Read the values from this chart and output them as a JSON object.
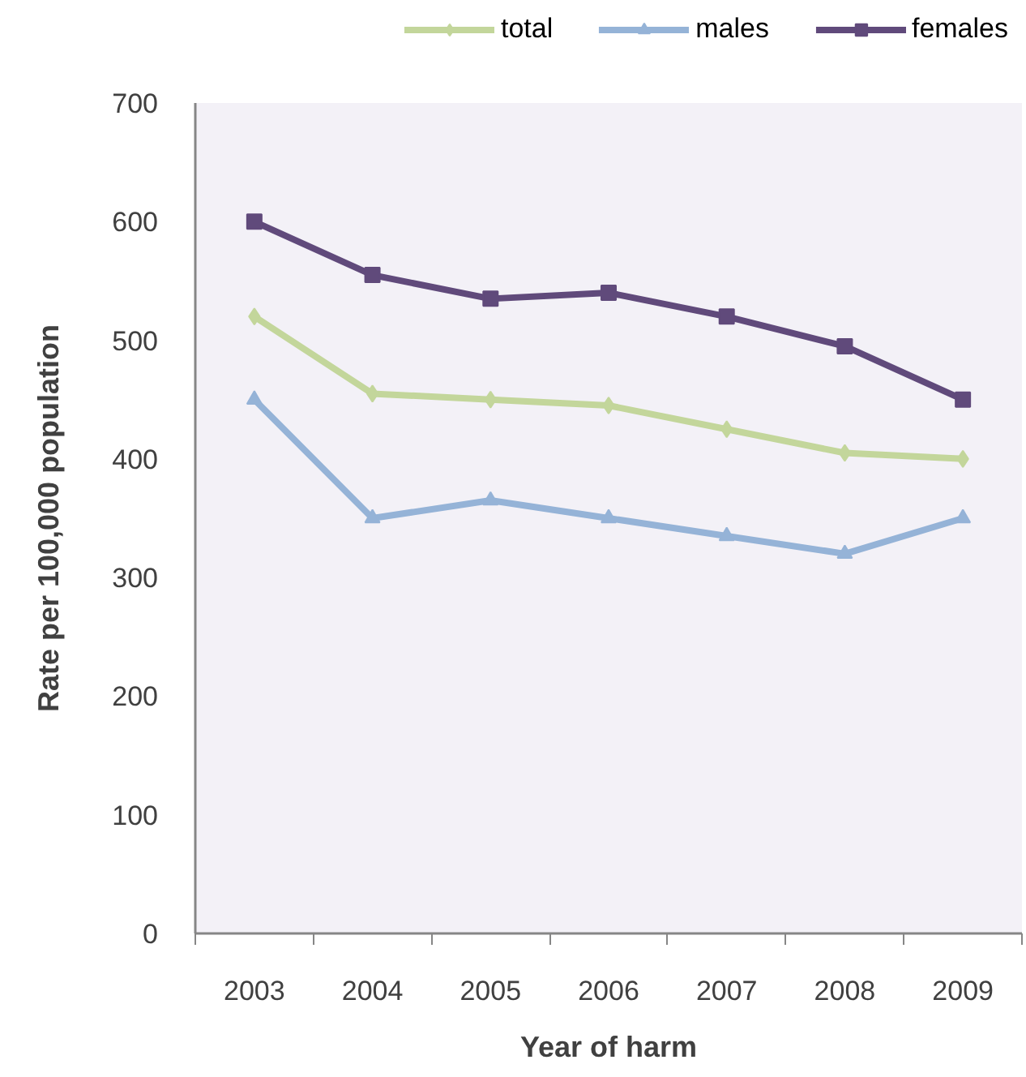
{
  "chart_data": {
    "type": "line",
    "xlabel": "Year of harm",
    "ylabel": "Rate per 100,000 population",
    "categories": [
      "2003",
      "2004",
      "2005",
      "2006",
      "2007",
      "2008",
      "2009"
    ],
    "ylim": [
      0,
      700
    ],
    "yticks": [
      0,
      100,
      200,
      300,
      400,
      500,
      600,
      700
    ],
    "grid": false,
    "legend": "top right",
    "series": [
      {
        "name": "total",
        "color": "#c3d69b",
        "marker": "diamond",
        "values": [
          520,
          455,
          450,
          445,
          425,
          405,
          400
        ]
      },
      {
        "name": "males",
        "color": "#95b3d7",
        "marker": "triangle",
        "values": [
          450,
          350,
          365,
          350,
          335,
          320,
          350
        ]
      },
      {
        "name": "females",
        "color": "#604a7b",
        "marker": "square",
        "values": [
          600,
          555,
          535,
          540,
          520,
          495,
          450
        ]
      }
    ]
  }
}
